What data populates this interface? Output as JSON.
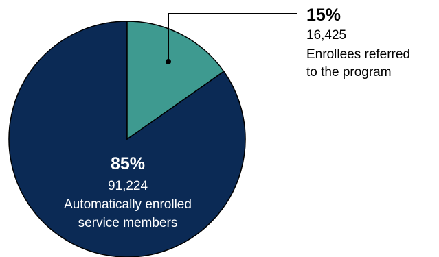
{
  "chart_data": {
    "type": "pie",
    "title": "",
    "slices": [
      {
        "percent_label": "15%",
        "value": 16425,
        "value_label": "16,425",
        "description_lines": [
          "Enrollees referred",
          "to the program"
        ],
        "color": "#3e9a90"
      },
      {
        "percent_label": "85%",
        "value": 91224,
        "value_label": "91,224",
        "description_lines": [
          "Automatically enrolled",
          "service members"
        ],
        "color": "#0b2a55"
      }
    ]
  },
  "colors": {
    "background": "#ffffff",
    "outline": "#000000",
    "inner_text": "#ffffff",
    "outer_text": "#000000"
  }
}
